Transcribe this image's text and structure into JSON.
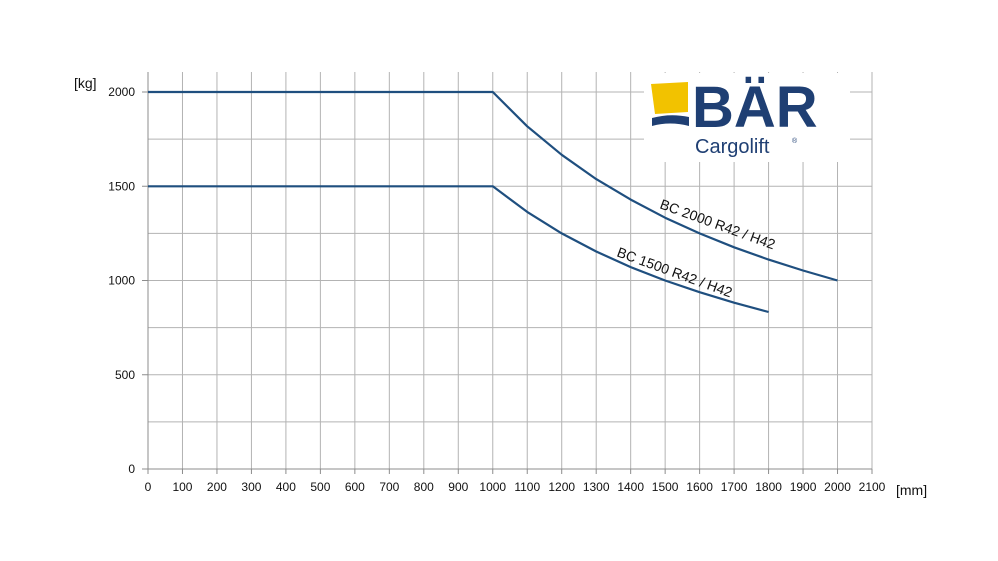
{
  "chart_data": {
    "type": "line",
    "title": "",
    "xlabel": "[mm]",
    "ylabel": "[kg]",
    "xlim": [
      0,
      2100
    ],
    "ylim": [
      0,
      2000
    ],
    "x_ticks": [
      0,
      100,
      200,
      300,
      400,
      500,
      600,
      700,
      800,
      900,
      1000,
      1100,
      1200,
      1300,
      1400,
      1500,
      1600,
      1700,
      1800,
      1900,
      2000,
      2100
    ],
    "y_ticks": [
      0,
      500,
      1000,
      1500,
      2000
    ],
    "grid": true,
    "line_color": "#1f4f7f",
    "series": [
      {
        "name": "BC 2000 R42 / H42",
        "x": [
          0,
          1000,
          1100,
          1200,
          1300,
          1400,
          1500,
          1600,
          1700,
          1800,
          1900,
          2000
        ],
        "y": [
          2000,
          2000,
          1818,
          1667,
          1538,
          1429,
          1333,
          1250,
          1176,
          1111,
          1053,
          1000
        ]
      },
      {
        "name": "BC 1500 R42 / H42",
        "x": [
          0,
          1000,
          1100,
          1200,
          1300,
          1400,
          1500,
          1600,
          1700,
          1800
        ],
        "y": [
          1500,
          1500,
          1364,
          1250,
          1154,
          1071,
          1000,
          938,
          882,
          833
        ]
      }
    ]
  },
  "logo": {
    "brand": "BÄR",
    "product": "Cargolift",
    "reg": "®",
    "yellow": "#f2c200",
    "navy": "#1f3f73"
  }
}
